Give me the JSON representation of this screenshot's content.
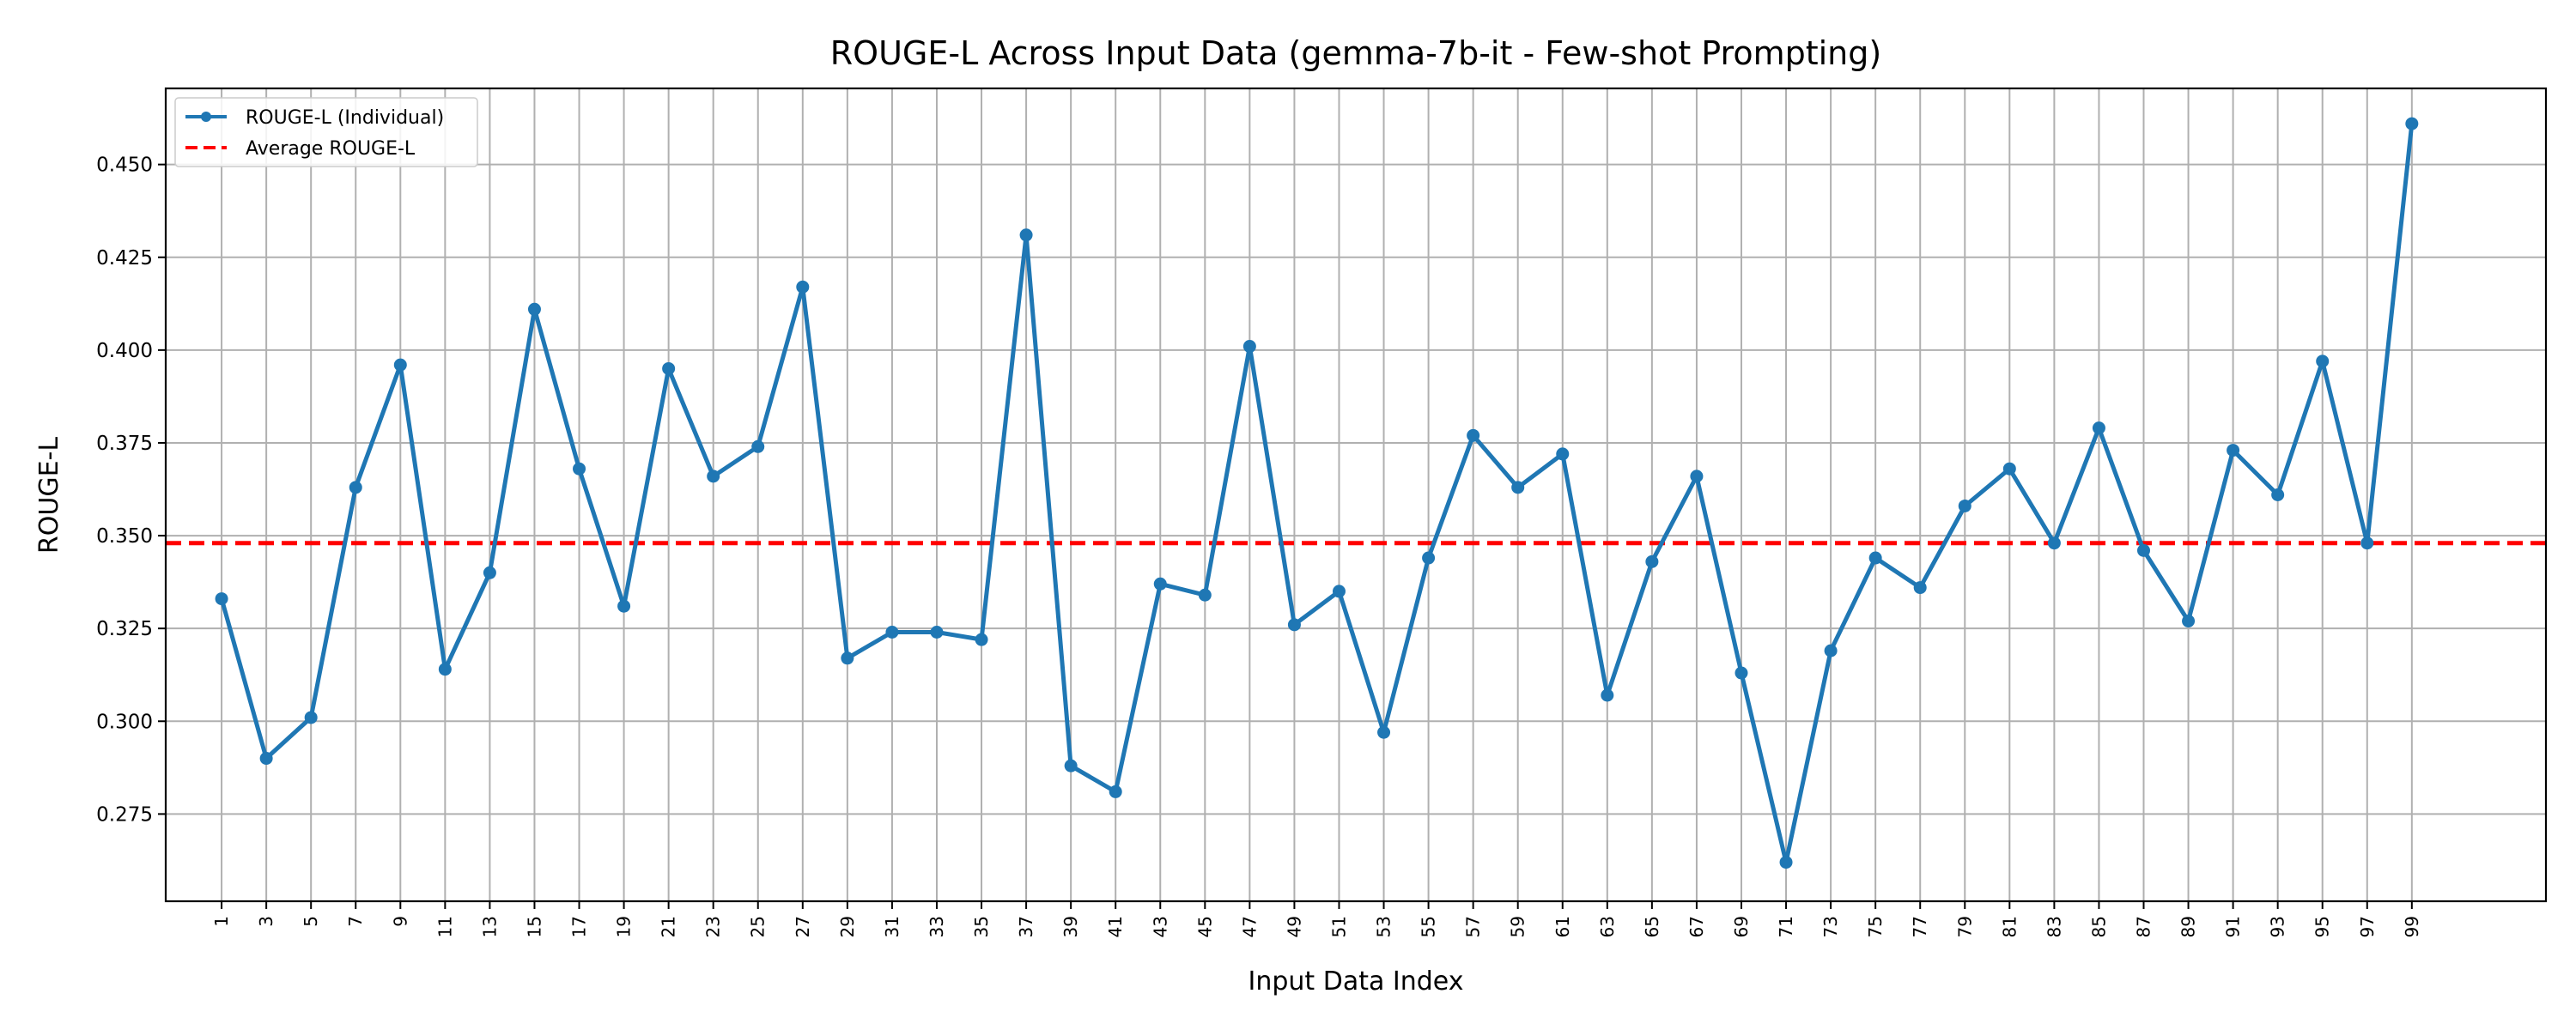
{
  "chart_data": {
    "type": "line",
    "title": "ROUGE-L Across Input Data (gemma-7b-it - Few-shot Prompting)",
    "xlabel": "Input Data Index",
    "ylabel": "ROUGE-L",
    "xlim": [
      -1.5,
      105
    ],
    "ylim": [
      0.2515,
      0.4705
    ],
    "x_ticks": [
      "1",
      "3",
      "5",
      "7",
      "9",
      "11",
      "13",
      "15",
      "17",
      "19",
      "21",
      "23",
      "25",
      "27",
      "29",
      "31",
      "33",
      "35",
      "37",
      "39",
      "41",
      "43",
      "45",
      "47",
      "49",
      "51",
      "53",
      "55",
      "57",
      "59",
      "61",
      "63",
      "65",
      "67",
      "69",
      "71",
      "73",
      "75",
      "77",
      "79",
      "81",
      "83",
      "85",
      "87",
      "89",
      "91",
      "93",
      "95",
      "97",
      "99"
    ],
    "y_ticks": [
      "0.275",
      "0.300",
      "0.325",
      "0.350",
      "0.375",
      "0.400",
      "0.425",
      "0.450"
    ],
    "grid": true,
    "legend_position": "top-left",
    "series": [
      {
        "name": "ROUGE-L (Individual)",
        "color": "#1f77b4",
        "marker": "circle",
        "x": [
          1,
          3,
          5,
          7,
          9,
          11,
          13,
          15,
          17,
          19,
          21,
          23,
          25,
          27,
          29,
          31,
          33,
          35,
          37,
          39,
          41,
          43,
          45,
          47,
          49,
          51,
          53,
          55,
          57,
          59,
          61,
          63,
          65,
          67,
          69,
          71,
          73,
          75,
          77,
          79,
          81,
          83,
          85,
          87,
          89,
          91,
          93,
          95,
          97,
          99
        ],
        "values": [
          0.333,
          0.29,
          0.301,
          0.363,
          0.396,
          0.314,
          0.34,
          0.411,
          0.368,
          0.331,
          0.395,
          0.366,
          0.374,
          0.417,
          0.317,
          0.324,
          0.324,
          0.322,
          0.431,
          0.288,
          0.281,
          0.337,
          0.334,
          0.401,
          0.326,
          0.335,
          0.297,
          0.344,
          0.377,
          0.363,
          0.372,
          0.307,
          0.343,
          0.366,
          0.313,
          0.262,
          0.319,
          0.344,
          0.336,
          0.358,
          0.368,
          0.348,
          0.379,
          0.346,
          0.327,
          0.373,
          0.361,
          0.397,
          0.348,
          0.461
        ]
      },
      {
        "name": "Average ROUGE-L",
        "color": "#ff0000",
        "style": "dashed",
        "value": 0.348
      }
    ]
  }
}
